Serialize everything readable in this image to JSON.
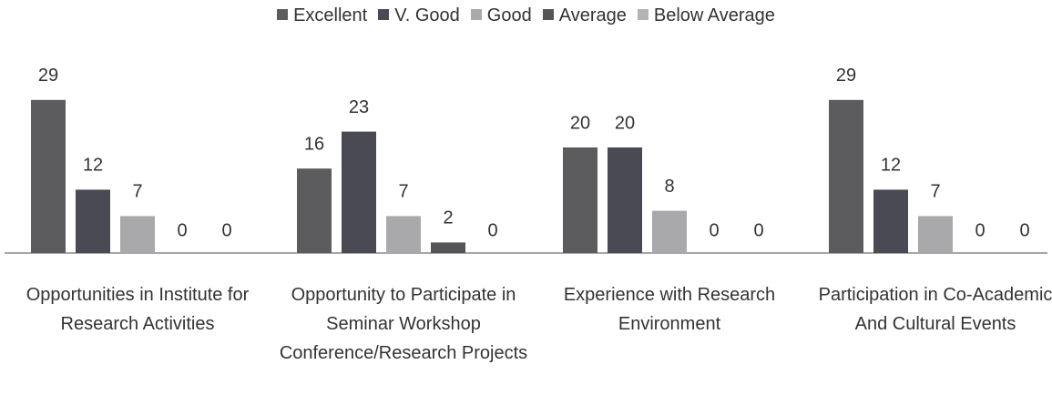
{
  "chart_data": {
    "type": "bar",
    "categories": [
      "Opportunities in Institute for Research Activities",
      "Opportunity to Participate in Seminar Workshop Conference/Research Projects",
      "Experience with Research Environment",
      "Participation in Co-Academic And Cultural Events"
    ],
    "series": [
      {
        "name": "Excellent",
        "color": "#5c5c5e",
        "values": [
          29,
          16,
          20,
          29
        ]
      },
      {
        "name": "V. Good",
        "color": "#4a4a54",
        "values": [
          12,
          23,
          20,
          12
        ]
      },
      {
        "name": "Good",
        "color": "#a9a9ab",
        "values": [
          7,
          7,
          8,
          7
        ]
      },
      {
        "name": "Average",
        "color": "#555558",
        "values": [
          0,
          2,
          0,
          0
        ]
      },
      {
        "name": "Below Average",
        "color": "#b3b3b5",
        "values": [
          0,
          0,
          0,
          0
        ]
      }
    ],
    "legend": "top"
  }
}
